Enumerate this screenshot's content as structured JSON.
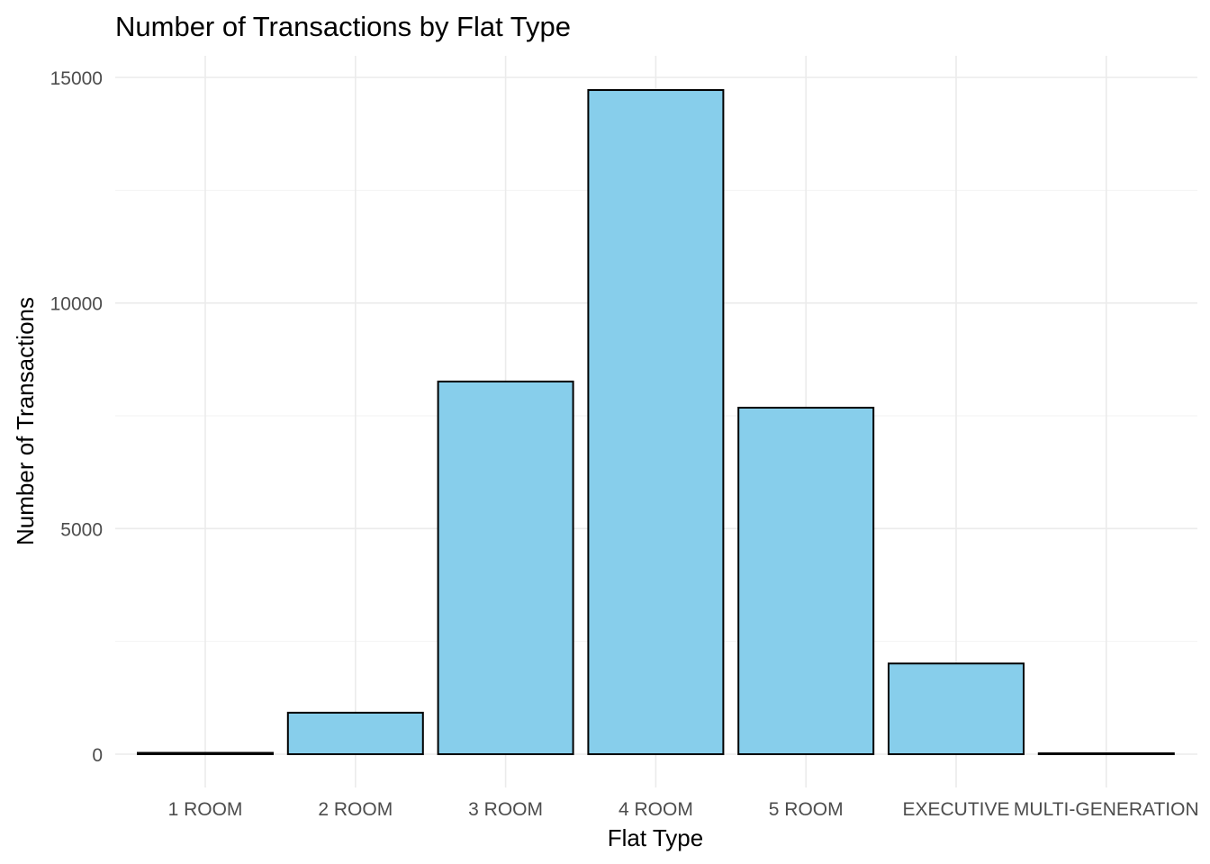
{
  "chart_data": {
    "type": "bar",
    "title": "Number of Transactions by Flat Type",
    "xlabel": "Flat Type",
    "ylabel": "Number of Transactions",
    "categories": [
      "1 ROOM",
      "2 ROOM",
      "3 ROOM",
      "4 ROOM",
      "5 ROOM",
      "EXECUTIVE",
      "MULTI-GENERATION"
    ],
    "values": [
      30,
      920,
      8260,
      14720,
      7680,
      2010,
      20
    ],
    "ylim": [
      0,
      15000
    ],
    "yticks": [
      0,
      5000,
      10000,
      15000
    ],
    "ytick_labels": [
      "0",
      "5000",
      "10000",
      "15000"
    ],
    "grid": true,
    "bar_fill": "#87CEEB",
    "bar_outline": "#000000"
  }
}
